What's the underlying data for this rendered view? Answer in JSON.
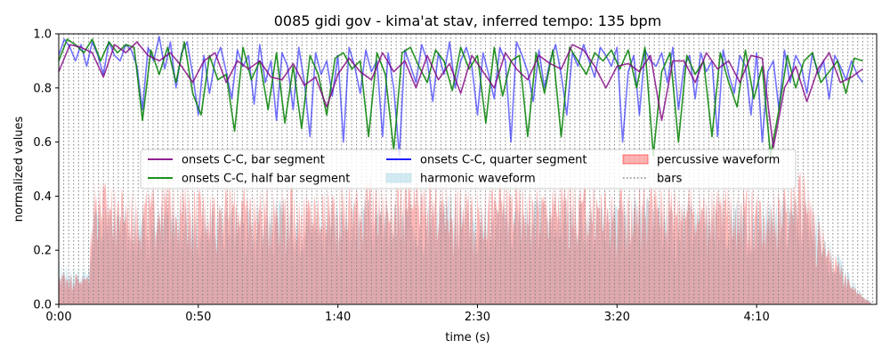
{
  "chart_data": {
    "type": "line",
    "title": "0085 gidi gov - kima'at stav, inferred tempo: 135 bpm",
    "xlabel": "time (s)",
    "ylabel": "normalized values",
    "xlim": [
      0,
      293
    ],
    "ylim": [
      0.0,
      1.0
    ],
    "x_ticks": [
      0,
      50,
      100,
      150,
      200,
      250
    ],
    "x_tick_labels": [
      "0:00",
      "0:50",
      "1:40",
      "2:30",
      "3:20",
      "4:10"
    ],
    "y_ticks": [
      0.0,
      0.2,
      0.4,
      0.6,
      0.8,
      1.0
    ],
    "y_tick_labels": [
      "0.0",
      "0.2",
      "0.4",
      "0.6",
      "0.8",
      "1.0"
    ],
    "grid": false,
    "legend": {
      "placement": "center",
      "columns": 3,
      "entries": [
        {
          "label": "onsets C-C, bar segment",
          "style": "line",
          "color": "#800080"
        },
        {
          "label": "onsets C-C, half bar segment",
          "style": "line",
          "color": "#008000"
        },
        {
          "label": "onsets C-C, quarter segment",
          "style": "line",
          "color": "#0000ff"
        },
        {
          "label": "harmonic waveform",
          "style": "patch",
          "color": "#add8e6"
        },
        {
          "label": "percussive waveform",
          "style": "patch",
          "color": "#ff0000"
        },
        {
          "label": "bars",
          "style": "dotted",
          "color": "#808080"
        }
      ]
    },
    "bar_line_interval_s": 1.7778,
    "series": [
      {
        "name": "onsets C-C, bar segment",
        "color": "#800080",
        "x": [
          0,
          4,
          8,
          12,
          16,
          20,
          24,
          28,
          32,
          36,
          40,
          44,
          48,
          52,
          56,
          60,
          64,
          68,
          72,
          76,
          80,
          84,
          88,
          92,
          96,
          100,
          104,
          108,
          112,
          116,
          120,
          124,
          128,
          132,
          136,
          140,
          144,
          148,
          152,
          156,
          160,
          164,
          168,
          172,
          176,
          180,
          184,
          188,
          192,
          196,
          200,
          204,
          208,
          212,
          216,
          220,
          224,
          228,
          232,
          236,
          240,
          244,
          248,
          252,
          256,
          260,
          264,
          268,
          272,
          276,
          280,
          284,
          288
        ],
        "values": [
          0.86,
          0.96,
          0.95,
          0.93,
          0.84,
          0.96,
          0.93,
          0.97,
          0.92,
          0.9,
          0.93,
          0.88,
          0.82,
          0.9,
          0.93,
          0.82,
          0.9,
          0.87,
          0.9,
          0.84,
          0.83,
          0.89,
          0.81,
          0.84,
          0.73,
          0.85,
          0.91,
          0.86,
          0.83,
          0.93,
          0.86,
          0.9,
          0.8,
          0.92,
          0.83,
          0.89,
          0.78,
          0.92,
          0.86,
          0.8,
          0.93,
          0.87,
          0.83,
          0.92,
          0.89,
          0.87,
          0.96,
          0.94,
          0.88,
          0.8,
          0.88,
          0.89,
          0.86,
          0.92,
          0.68,
          0.9,
          0.9,
          0.82,
          0.93,
          0.87,
          0.9,
          0.82,
          0.92,
          0.91,
          0.58,
          0.8,
          0.88,
          0.75,
          0.87,
          0.93,
          0.82,
          0.84,
          0.87
        ]
      },
      {
        "name": "onsets C-C, half bar segment",
        "color": "#008000",
        "x": [
          0,
          3,
          6,
          9,
          12,
          15,
          18,
          21,
          24,
          27,
          30,
          33,
          36,
          39,
          42,
          45,
          48,
          51,
          54,
          57,
          60,
          63,
          66,
          69,
          72,
          75,
          78,
          81,
          84,
          87,
          90,
          93,
          96,
          99,
          102,
          105,
          108,
          111,
          114,
          117,
          120,
          123,
          126,
          129,
          132,
          135,
          138,
          141,
          144,
          147,
          150,
          153,
          156,
          159,
          162,
          165,
          168,
          171,
          174,
          177,
          180,
          183,
          186,
          189,
          192,
          195,
          198,
          201,
          204,
          207,
          210,
          213,
          216,
          219,
          222,
          225,
          228,
          231,
          234,
          237,
          240,
          243,
          246,
          249,
          252,
          255,
          258,
          261,
          264,
          267,
          270,
          273,
          276,
          279,
          282,
          285,
          288
        ],
        "values": [
          0.9,
          0.98,
          0.96,
          0.93,
          0.98,
          0.9,
          0.97,
          0.93,
          0.96,
          0.95,
          0.68,
          0.94,
          0.85,
          0.95,
          0.82,
          0.97,
          0.78,
          0.7,
          0.92,
          0.83,
          0.85,
          0.64,
          0.95,
          0.83,
          0.9,
          0.72,
          0.93,
          0.67,
          0.88,
          0.65,
          0.92,
          0.85,
          0.7,
          0.91,
          0.93,
          0.87,
          0.9,
          0.62,
          0.93,
          0.85,
          0.57,
          0.93,
          0.95,
          0.88,
          0.82,
          0.94,
          0.9,
          0.79,
          0.95,
          0.87,
          0.92,
          0.67,
          0.95,
          0.77,
          0.9,
          0.92,
          0.62,
          0.93,
          0.78,
          0.94,
          0.62,
          0.95,
          0.9,
          0.85,
          0.93,
          0.9,
          0.94,
          0.87,
          0.94,
          0.8,
          0.95,
          0.55,
          0.86,
          0.93,
          0.6,
          0.92,
          0.85,
          0.9,
          0.62,
          0.93,
          0.82,
          0.73,
          0.94,
          0.76,
          0.88,
          0.55,
          0.72,
          0.92,
          0.8,
          0.9,
          0.93,
          0.82,
          0.86,
          0.9,
          0.78,
          0.91,
          0.9
        ]
      },
      {
        "name": "onsets C-C, quarter segment",
        "color": "#0000ff",
        "x": [
          0,
          2,
          4,
          6,
          8,
          10,
          12,
          14,
          16,
          18,
          20,
          22,
          24,
          26,
          28,
          30,
          32,
          34,
          36,
          38,
          40,
          42,
          44,
          46,
          48,
          50,
          52,
          54,
          56,
          58,
          60,
          62,
          64,
          66,
          68,
          70,
          72,
          74,
          76,
          78,
          80,
          82,
          84,
          86,
          88,
          90,
          92,
          94,
          96,
          98,
          100,
          102,
          104,
          106,
          108,
          110,
          112,
          114,
          116,
          118,
          120,
          122,
          124,
          126,
          128,
          130,
          132,
          134,
          136,
          138,
          140,
          142,
          144,
          146,
          148,
          150,
          152,
          154,
          156,
          158,
          160,
          162,
          164,
          166,
          168,
          170,
          172,
          174,
          176,
          178,
          180,
          182,
          184,
          186,
          188,
          190,
          192,
          194,
          196,
          198,
          200,
          202,
          204,
          206,
          208,
          210,
          212,
          214,
          216,
          218,
          220,
          222,
          224,
          226,
          228,
          230,
          232,
          234,
          236,
          238,
          240,
          242,
          244,
          246,
          248,
          250,
          252,
          254,
          256,
          258,
          260,
          262,
          264,
          266,
          268,
          270,
          272,
          274,
          276,
          278,
          280,
          282,
          284,
          286,
          288
        ],
        "values": [
          0.92,
          0.98,
          0.95,
          0.9,
          0.96,
          0.88,
          0.97,
          0.92,
          0.85,
          0.97,
          0.92,
          0.9,
          0.96,
          0.94,
          0.88,
          0.72,
          0.95,
          0.9,
          0.99,
          0.87,
          0.97,
          0.8,
          0.93,
          0.97,
          0.85,
          0.7,
          0.92,
          0.78,
          0.9,
          0.95,
          0.86,
          0.76,
          0.94,
          0.88,
          0.92,
          0.74,
          0.96,
          0.82,
          0.9,
          0.68,
          0.93,
          0.88,
          0.72,
          0.95,
          0.82,
          0.62,
          0.93,
          0.85,
          0.9,
          0.77,
          0.92,
          0.6,
          0.95,
          0.88,
          0.78,
          0.94,
          0.86,
          0.9,
          0.62,
          0.93,
          0.8,
          0.55,
          0.94,
          0.88,
          0.82,
          0.96,
          0.9,
          0.75,
          0.93,
          0.85,
          0.97,
          0.8,
          0.9,
          0.95,
          0.88,
          0.7,
          0.93,
          0.85,
          0.76,
          0.95,
          0.9,
          0.6,
          0.97,
          0.92,
          0.86,
          0.75,
          0.94,
          0.8,
          0.9,
          0.96,
          0.85,
          0.7,
          0.93,
          0.88,
          0.96,
          0.9,
          0.84,
          0.95,
          0.92,
          0.88,
          0.95,
          0.6,
          0.86,
          0.92,
          0.7,
          0.94,
          0.9,
          0.88,
          0.93,
          0.82,
          0.95,
          0.72,
          0.88,
          0.92,
          0.76,
          0.93,
          0.86,
          0.9,
          0.62,
          0.94,
          0.85,
          0.78,
          0.92,
          0.88,
          0.7,
          0.93,
          0.6,
          0.86,
          0.9,
          0.72,
          0.94,
          0.82,
          0.92,
          0.88,
          0.78,
          0.93,
          0.85,
          0.9,
          0.76,
          0.92,
          0.88,
          0.83,
          0.9,
          0.85,
          0.82
        ]
      },
      {
        "name": "harmonic waveform",
        "style": "envelope",
        "color": "#add8e6",
        "x": [
          0,
          5,
          10,
          11,
          12,
          20,
          30,
          40,
          50,
          60,
          70,
          80,
          90,
          100,
          110,
          120,
          130,
          140,
          150,
          160,
          170,
          180,
          190,
          200,
          210,
          220,
          230,
          240,
          250,
          260,
          266,
          270,
          276,
          280,
          284,
          288,
          291
        ],
        "values": [
          0.16,
          0.15,
          0.14,
          0.16,
          0.36,
          0.38,
          0.37,
          0.38,
          0.36,
          0.39,
          0.38,
          0.4,
          0.37,
          0.38,
          0.39,
          0.38,
          0.4,
          0.41,
          0.38,
          0.39,
          0.4,
          0.4,
          0.38,
          0.39,
          0.4,
          0.38,
          0.39,
          0.41,
          0.38,
          0.4,
          0.42,
          0.38,
          0.25,
          0.18,
          0.1,
          0.04,
          0.01
        ]
      },
      {
        "name": "percussive waveform",
        "style": "envelope",
        "color": "#ff0000",
        "x": [
          0,
          5,
          10,
          11,
          12,
          20,
          30,
          40,
          50,
          60,
          70,
          80,
          90,
          100,
          110,
          120,
          130,
          140,
          150,
          160,
          170,
          180,
          190,
          200,
          210,
          220,
          230,
          240,
          250,
          260,
          266,
          270,
          276,
          280,
          284,
          288,
          291
        ],
        "values": [
          0.13,
          0.12,
          0.11,
          0.13,
          0.49,
          0.45,
          0.42,
          0.47,
          0.44,
          0.46,
          0.43,
          0.46,
          0.42,
          0.45,
          0.47,
          0.44,
          0.46,
          0.45,
          0.43,
          0.47,
          0.44,
          0.46,
          0.45,
          0.43,
          0.46,
          0.47,
          0.44,
          0.45,
          0.43,
          0.44,
          0.53,
          0.4,
          0.22,
          0.15,
          0.08,
          0.03,
          0.01
        ]
      }
    ]
  }
}
